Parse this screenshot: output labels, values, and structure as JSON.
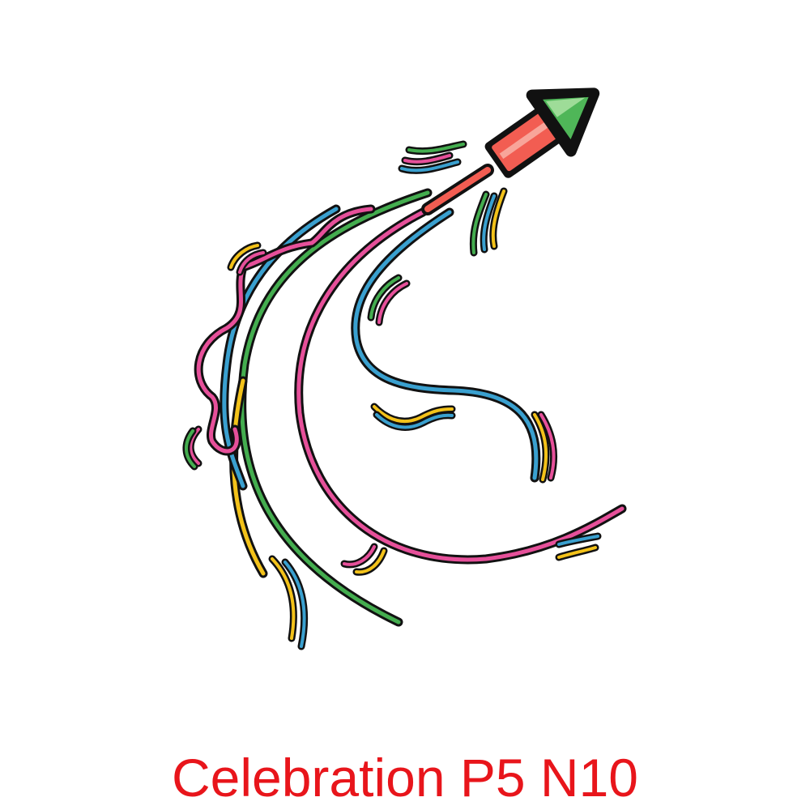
{
  "caption": "Celebration P5 N10",
  "colors": {
    "caption": "#e8151b",
    "pink": "#e6509a",
    "blue": "#3aa0cf",
    "green": "#44ad4f",
    "yellow": "#f3c21a",
    "rocket_body": "#f25d52",
    "rocket_body_highlight": "#f8a59a",
    "rocket_tip": "#4fb658",
    "rocket_tip_highlight": "#9edc98",
    "outline": "#111111"
  },
  "icons": {
    "illustration": "firework-rocket-with-streamers-illustration"
  }
}
